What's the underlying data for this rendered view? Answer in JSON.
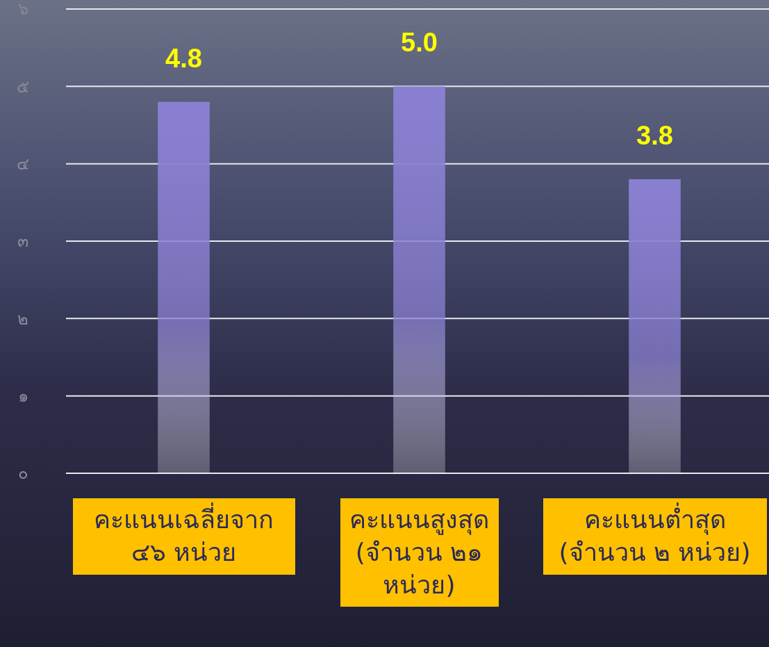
{
  "chart_data": {
    "type": "bar",
    "categories": [
      "คะแนนเฉลี่ยจาก ๔๖ หน่วย",
      "คะแนนสูงสุด (จำนวน ๒๑ หน่วย)",
      "คะแนนต่ำสุด (จำนวน ๒ หน่วย)"
    ],
    "values": [
      4.8,
      5.0,
      3.8
    ],
    "color": "#8a80d2",
    "ylim": [
      0,
      6
    ],
    "yticks": [
      {
        "value": 0,
        "label": "๐"
      },
      {
        "value": 1,
        "label": "๑"
      },
      {
        "value": 2,
        "label": "๒"
      },
      {
        "value": 3,
        "label": "๓"
      },
      {
        "value": 4,
        "label": "๔"
      },
      {
        "value": 5,
        "label": "๕"
      },
      {
        "value": 6,
        "label": "๖"
      }
    ],
    "grid": "y",
    "value_labels": [
      "4.8",
      "5.0",
      "3.8"
    ]
  }
}
